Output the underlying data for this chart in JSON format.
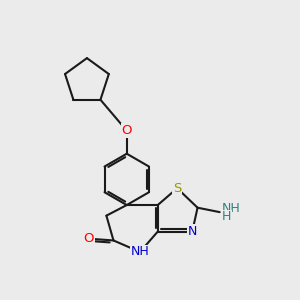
{
  "bg": "#ebebeb",
  "bc": "#1a1a1a",
  "lw": 1.5,
  "O_color": "#ff0000",
  "N_color": "#0000cc",
  "S_color": "#999900",
  "NH2_color": "#2f8080",
  "fs": 9.0,
  "xlim": [
    0.3,
    3.0
  ],
  "ylim": [
    0.2,
    3.1
  ]
}
